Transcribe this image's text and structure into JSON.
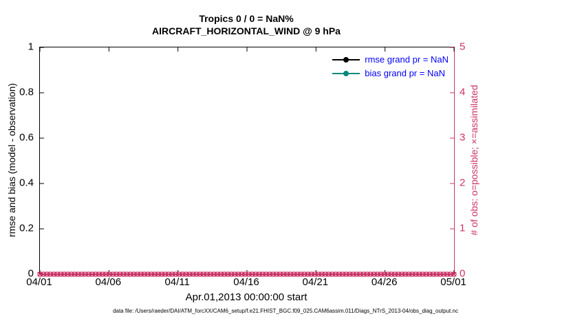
{
  "title": {
    "line1": "Tropics 0 / 0 = NaN%",
    "line2": "AIRCRAFT_HORIZONTAL_WIND @ 9 hPa"
  },
  "chart_data": {
    "type": "line",
    "x_tick_labels": [
      "04/01",
      "04/06",
      "04/11",
      "04/16",
      "04/21",
      "04/26",
      "05/01"
    ],
    "xlabel": "Apr.01,2013 00:00:00 start",
    "left_axis": {
      "label": "rmse and bias (model - observation)",
      "ticks": [
        "0",
        "0.2",
        "0.4",
        "0.6",
        "0.8",
        "1"
      ],
      "lim": [
        0,
        1
      ],
      "color": "#000000"
    },
    "right_axis": {
      "label": "# of obs: o=possible; ×=assimilated",
      "ticks": [
        "0",
        "1",
        "2",
        "3",
        "4",
        "5"
      ],
      "lim": [
        0,
        5
      ],
      "color": "#cc3366"
    },
    "series": [
      {
        "name": "rmse",
        "legend": "rmse grand pr = NaN",
        "color": "#000000",
        "values": [],
        "value_note": "NaN"
      },
      {
        "name": "bias",
        "legend": "bias grand pr = NaN",
        "color": "#00897b",
        "values": [],
        "value_note": "NaN"
      }
    ],
    "obs_counts": {
      "possible_symbol": "o",
      "assimilated_symbol": "×",
      "value": 0,
      "points": 120,
      "color": "#cc3366"
    }
  },
  "legend": {
    "text_color": "#0000ff"
  },
  "footer": "data file: /Users/raeder/DAI/ATM_forcXX/CAM6_setup/f.e21.FHIST_BGC.f09_025.CAM6assim.011/Diags_NTrS_2013-04/obs_diag_output.nc"
}
